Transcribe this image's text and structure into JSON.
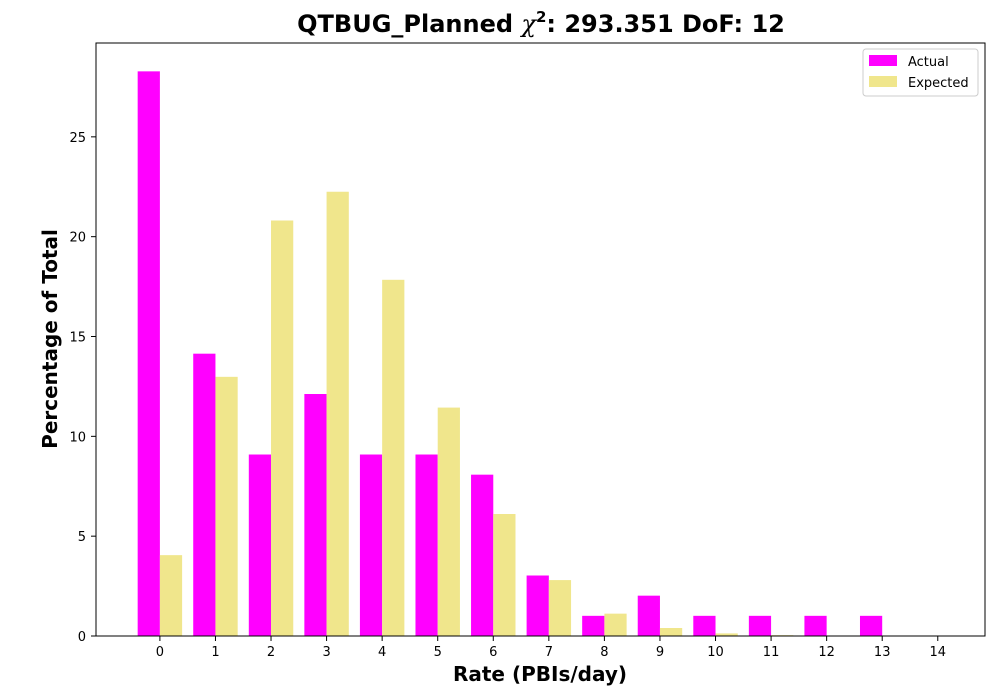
{
  "chart_data": {
    "type": "bar",
    "title": "QTBUG_Planned",
    "title_chi_symbol": "χ",
    "title_chi_exponent": "2",
    "title_stats": ": 293.351 DoF: 12",
    "xlabel": "Rate (PBIs/day)",
    "ylabel": "Percentage of Total",
    "categories": [
      "0",
      "1",
      "2",
      "3",
      "4",
      "5",
      "6",
      "7",
      "8",
      "9",
      "10",
      "11",
      "12",
      "13",
      "14"
    ],
    "series": [
      {
        "name": "Actual",
        "color": "#ff00ff",
        "values": [
          28.28,
          14.14,
          9.09,
          12.12,
          9.09,
          9.09,
          8.08,
          3.03,
          1.01,
          2.02,
          1.01,
          1.01,
          1.01,
          1.01,
          0
        ]
      },
      {
        "name": "Expected",
        "color": "#f0e68c",
        "values": [
          4.05,
          12.98,
          20.81,
          22.25,
          17.84,
          11.44,
          6.11,
          2.8,
          1.12,
          0.4,
          0.13,
          0.04,
          0.01,
          0.0,
          0.0
        ]
      }
    ],
    "yticks": [
      "0",
      "5",
      "10",
      "15",
      "20",
      "25"
    ],
    "ylim": [
      0,
      29.7
    ],
    "xlim": [
      -1.15,
      14.85
    ],
    "grid": false,
    "legend_position": "top-right"
  }
}
